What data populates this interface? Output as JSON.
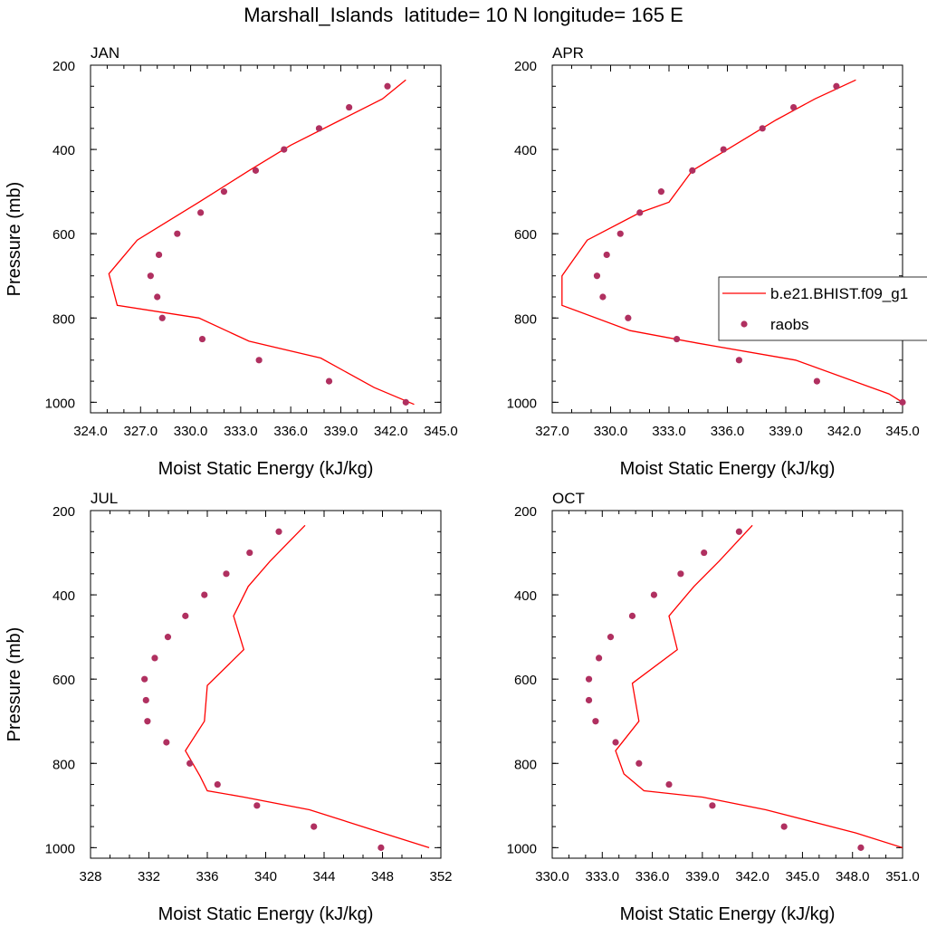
{
  "figure_title": "Marshall_Islands  latitude= 10 N longitude= 165 E",
  "colors": {
    "model_line": "#ff0000",
    "raobs_marker": "#b03060"
  },
  "legend": {
    "model_label": "b.e21.BHIST.f09_g1",
    "obs_label": "raobs",
    "panel": "APR"
  },
  "chart_data": [
    {
      "type": "line",
      "panel_title": "JAN",
      "xlabel": "Moist Static Energy (kJ/kg)",
      "ylabel": "Pressure (mb)",
      "xlim": [
        324.0,
        345.0
      ],
      "ylim": [
        1025,
        200
      ],
      "x_ticks": [
        "324.0",
        "327.0",
        "330.0",
        "333.0",
        "336.0",
        "339.0",
        "342.0",
        "345.0"
      ],
      "y_ticks": [
        "200",
        "400",
        "600",
        "800",
        "1000"
      ],
      "series": [
        {
          "name": "b.e21.BHIST.f09_g1",
          "style": "line",
          "points": [
            [
              343.4,
              1005
            ],
            [
              341.0,
              965
            ],
            [
              337.8,
              895
            ],
            [
              333.5,
              855
            ],
            [
              330.5,
              800
            ],
            [
              325.6,
              770
            ],
            [
              325.1,
              695
            ],
            [
              326.8,
              615
            ],
            [
              330.5,
              525
            ],
            [
              333.5,
              450
            ],
            [
              336.0,
              390
            ],
            [
              339.0,
              330
            ],
            [
              341.5,
              280
            ],
            [
              342.9,
              235
            ]
          ]
        },
        {
          "name": "raobs",
          "style": "marker",
          "points": [
            [
              341.8,
              250
            ],
            [
              339.5,
              300
            ],
            [
              337.7,
              350
            ],
            [
              335.6,
              400
            ],
            [
              333.9,
              450
            ],
            [
              332.0,
              500
            ],
            [
              330.6,
              550
            ],
            [
              329.2,
              600
            ],
            [
              328.1,
              650
            ],
            [
              327.6,
              700
            ],
            [
              328.0,
              750
            ],
            [
              328.3,
              800
            ],
            [
              330.7,
              850
            ],
            [
              334.1,
              900
            ],
            [
              338.3,
              950
            ],
            [
              342.9,
              1000
            ]
          ]
        }
      ]
    },
    {
      "type": "line",
      "panel_title": "APR",
      "xlabel": "Moist Static Energy (kJ/kg)",
      "ylabel": "",
      "xlim": [
        327.0,
        345.0
      ],
      "ylim": [
        1025,
        200
      ],
      "x_ticks": [
        "327.0",
        "330.0",
        "333.0",
        "336.0",
        "339.0",
        "342.0",
        "345.0"
      ],
      "y_ticks": [
        "200",
        "400",
        "600",
        "800",
        "1000"
      ],
      "series": [
        {
          "name": "b.e21.BHIST.f09_g1",
          "style": "line",
          "points": [
            [
              345.0,
              1000
            ],
            [
              344.3,
              980
            ],
            [
              343.4,
              965
            ],
            [
              339.5,
              900
            ],
            [
              334.5,
              860
            ],
            [
              331.0,
              830
            ],
            [
              327.5,
              770
            ],
            [
              327.5,
              700
            ],
            [
              328.8,
              615
            ],
            [
              331.5,
              550
            ],
            [
              333.0,
              525
            ],
            [
              334.2,
              450
            ],
            [
              336.0,
              400
            ],
            [
              338.5,
              330
            ],
            [
              340.5,
              280
            ],
            [
              342.6,
              235
            ]
          ]
        },
        {
          "name": "raobs",
          "style": "marker",
          "points": [
            [
              341.6,
              250
            ],
            [
              339.4,
              300
            ],
            [
              337.8,
              350
            ],
            [
              335.8,
              400
            ],
            [
              334.2,
              450
            ],
            [
              332.6,
              500
            ],
            [
              331.5,
              550
            ],
            [
              330.5,
              600
            ],
            [
              329.8,
              650
            ],
            [
              329.3,
              700
            ],
            [
              329.6,
              750
            ],
            [
              330.9,
              800
            ],
            [
              333.4,
              850
            ],
            [
              336.6,
              900
            ],
            [
              340.6,
              950
            ],
            [
              345.0,
              1000
            ]
          ]
        }
      ]
    },
    {
      "type": "line",
      "panel_title": "JUL",
      "xlabel": "Moist Static Energy (kJ/kg)",
      "ylabel": "Pressure (mb)",
      "xlim": [
        328,
        352
      ],
      "ylim": [
        1025,
        200
      ],
      "x_ticks": [
        "328",
        "332",
        "336",
        "340",
        "344",
        "348",
        "352"
      ],
      "y_ticks": [
        "200",
        "400",
        "600",
        "800",
        "1000"
      ],
      "series": [
        {
          "name": "b.e21.BHIST.f09_g1",
          "style": "line",
          "points": [
            [
              351.2,
              1000
            ],
            [
              348.0,
              965
            ],
            [
              343.0,
              910
            ],
            [
              338.5,
              880
            ],
            [
              336.0,
              865
            ],
            [
              335.5,
              830
            ],
            [
              334.5,
              770
            ],
            [
              335.8,
              700
            ],
            [
              336.0,
              615
            ],
            [
              338.5,
              530
            ],
            [
              337.8,
              450
            ],
            [
              338.8,
              380
            ],
            [
              340.3,
              320
            ],
            [
              342.7,
              235
            ]
          ]
        },
        {
          "name": "raobs",
          "style": "marker",
          "points": [
            [
              340.9,
              250
            ],
            [
              338.9,
              300
            ],
            [
              337.3,
              350
            ],
            [
              335.8,
              400
            ],
            [
              334.5,
              450
            ],
            [
              333.3,
              500
            ],
            [
              332.4,
              550
            ],
            [
              331.7,
              600
            ],
            [
              331.8,
              650
            ],
            [
              331.9,
              700
            ],
            [
              333.2,
              750
            ],
            [
              334.8,
              800
            ],
            [
              336.7,
              850
            ],
            [
              339.4,
              900
            ],
            [
              343.3,
              950
            ],
            [
              347.9,
              1000
            ]
          ]
        }
      ]
    },
    {
      "type": "line",
      "panel_title": "OCT",
      "xlabel": "Moist Static Energy (kJ/kg)",
      "ylabel": "",
      "xlim": [
        330.0,
        351.0
      ],
      "ylim": [
        1025,
        200
      ],
      "x_ticks": [
        "330.0",
        "333.0",
        "336.0",
        "339.0",
        "342.0",
        "345.0",
        "348.0",
        "351.0"
      ],
      "y_ticks": [
        "200",
        "400",
        "600",
        "800",
        "1000"
      ],
      "series": [
        {
          "name": "b.e21.BHIST.f09_g1",
          "style": "line",
          "points": [
            [
              351.0,
              1000
            ],
            [
              348.2,
              965
            ],
            [
              342.8,
              910
            ],
            [
              339.0,
              880
            ],
            [
              335.5,
              865
            ],
            [
              334.3,
              825
            ],
            [
              333.8,
              770
            ],
            [
              335.2,
              700
            ],
            [
              334.8,
              610
            ],
            [
              337.5,
              530
            ],
            [
              337.0,
              450
            ],
            [
              338.5,
              380
            ],
            [
              340.0,
              320
            ],
            [
              342.0,
              235
            ]
          ]
        },
        {
          "name": "raobs",
          "style": "marker",
          "points": [
            [
              341.2,
              250
            ],
            [
              339.1,
              300
            ],
            [
              337.7,
              350
            ],
            [
              336.1,
              400
            ],
            [
              334.8,
              450
            ],
            [
              333.5,
              500
            ],
            [
              332.8,
              550
            ],
            [
              332.2,
              600
            ],
            [
              332.2,
              650
            ],
            [
              332.6,
              700
            ],
            [
              333.8,
              750
            ],
            [
              335.2,
              800
            ],
            [
              337.0,
              850
            ],
            [
              339.6,
              900
            ],
            [
              343.9,
              950
            ],
            [
              348.5,
              1000
            ]
          ]
        }
      ]
    }
  ]
}
